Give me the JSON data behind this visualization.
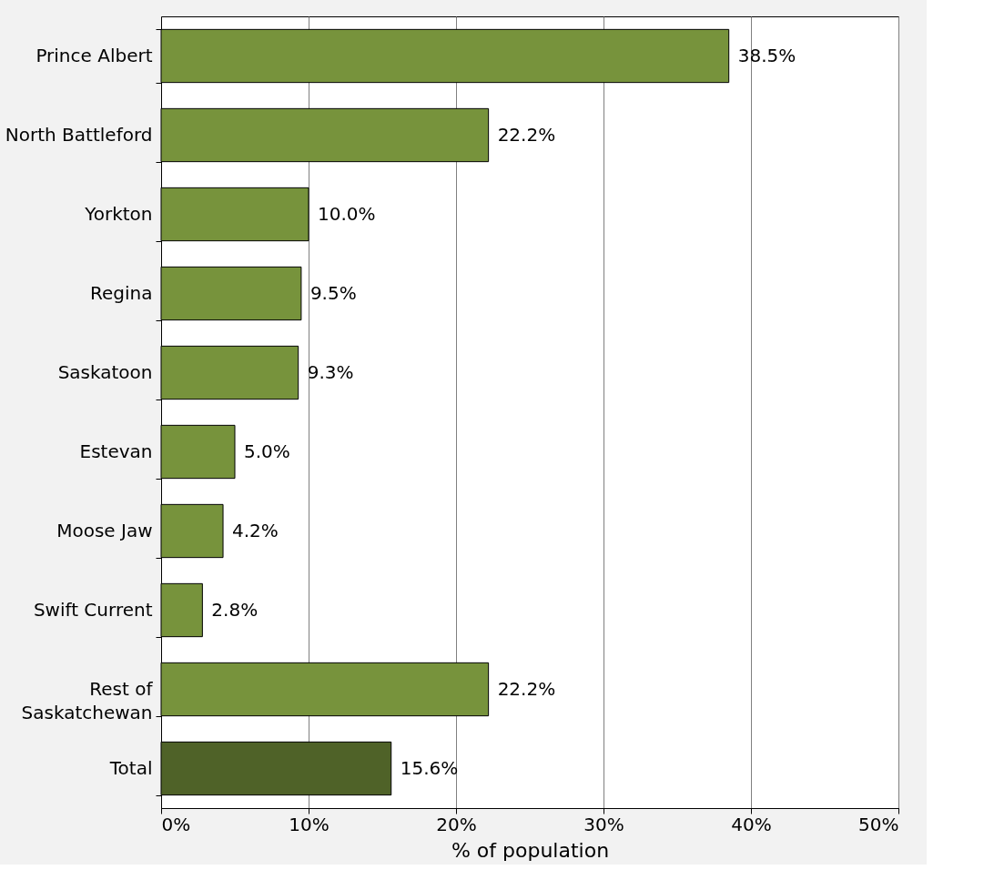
{
  "chart_data": {
    "type": "bar",
    "orientation": "horizontal",
    "xlabel": "% of population",
    "categories": [
      "Prince Albert",
      "North Battleford",
      "Yorkton",
      "Regina",
      "Saskatoon",
      "Estevan",
      "Moose Jaw",
      "Swift Current",
      "Rest of\nSaskatchewan",
      "Total"
    ],
    "values": [
      38.5,
      22.2,
      10.0,
      9.5,
      9.3,
      5.0,
      4.2,
      2.8,
      22.2,
      15.6
    ],
    "colors": [
      "#77933c",
      "#77933c",
      "#77933c",
      "#77933c",
      "#77933c",
      "#77933c",
      "#77933c",
      "#77933c",
      "#77933c",
      "#4f6228"
    ],
    "value_labels": [
      "38.5%",
      "22.2%",
      "10.0%",
      "9.5%",
      "9.3%",
      "5.0%",
      "4.2%",
      "2.8%",
      "22.2%",
      "15.6%"
    ],
    "xlim": [
      0,
      50
    ],
    "xticks": [
      {
        "value": 0,
        "label": "0%"
      },
      {
        "value": 10,
        "label": "10%"
      },
      {
        "value": 20,
        "label": "20%"
      },
      {
        "value": 30,
        "label": "30%"
      },
      {
        "value": 40,
        "label": "40%"
      },
      {
        "value": 50,
        "label": "50%"
      }
    ],
    "grid": "x"
  }
}
